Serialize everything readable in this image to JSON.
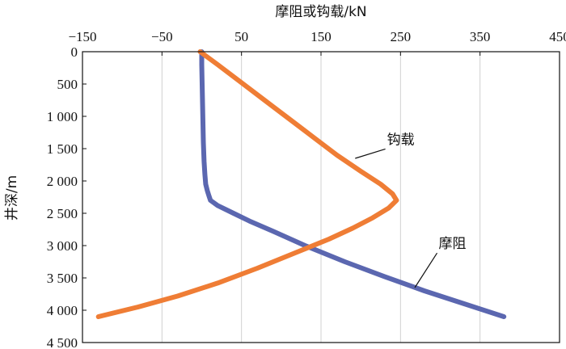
{
  "chart_data": {
    "type": "line",
    "xlabel": "摩阻或钩载/kN",
    "ylabel": "井深/m",
    "x_axis_position": "top",
    "y_inverted": true,
    "xlim": [
      -150,
      450
    ],
    "ylim": [
      0,
      4500
    ],
    "x_ticks": [
      -150,
      -50,
      50,
      150,
      250,
      350,
      450
    ],
    "x_tick_labels": [
      "−150",
      "−50",
      "50",
      "150",
      "250",
      "350",
      "450"
    ],
    "y_ticks": [
      0,
      500,
      1000,
      1500,
      2000,
      2500,
      3000,
      3500,
      4000,
      4500
    ],
    "y_tick_labels": [
      "0",
      "500",
      "1 000",
      "1 500",
      "2 000",
      "2 500",
      "3 000",
      "3 500",
      "4 000",
      "4 500"
    ],
    "grid": {
      "vertical": true,
      "horizontal": false,
      "color": "#d0d0d0"
    },
    "series": [
      {
        "name": "摩阻",
        "color": "#5b67b0",
        "points": [
          [
            0,
            0
          ],
          [
            0,
            200
          ],
          [
            0.5,
            500
          ],
          [
            1,
            800
          ],
          [
            1.5,
            1100
          ],
          [
            2,
            1400
          ],
          [
            3,
            1700
          ],
          [
            4,
            1900
          ],
          [
            5,
            2050
          ],
          [
            7,
            2150
          ],
          [
            9,
            2230
          ],
          [
            11,
            2300
          ],
          [
            20,
            2380
          ],
          [
            40,
            2500
          ],
          [
            60,
            2620
          ],
          [
            90,
            2780
          ],
          [
            130,
            3000
          ],
          [
            180,
            3250
          ],
          [
            230,
            3480
          ],
          [
            280,
            3700
          ],
          [
            330,
            3900
          ],
          [
            380,
            4100
          ]
        ]
      },
      {
        "name": "钩载",
        "color": "#ef7d35",
        "points": [
          [
            -2,
            0
          ],
          [
            20,
            200
          ],
          [
            50,
            480
          ],
          [
            80,
            760
          ],
          [
            110,
            1040
          ],
          [
            140,
            1320
          ],
          [
            170,
            1600
          ],
          [
            200,
            1850
          ],
          [
            225,
            2050
          ],
          [
            240,
            2200
          ],
          [
            245,
            2300
          ],
          [
            235,
            2420
          ],
          [
            215,
            2570
          ],
          [
            190,
            2730
          ],
          [
            160,
            2900
          ],
          [
            120,
            3100
          ],
          [
            70,
            3350
          ],
          [
            20,
            3580
          ],
          [
            -30,
            3780
          ],
          [
            -80,
            3950
          ],
          [
            -130,
            4100
          ]
        ]
      }
    ],
    "annotations": [
      {
        "text": "钩载",
        "series": "钩载",
        "at": [
          193,
          1650
        ],
        "label_at": [
          233,
          1430
        ]
      },
      {
        "text": "摩阻",
        "series": "摩阻",
        "at": [
          268,
          3650
        ],
        "label_at": [
          298,
          3040
        ]
      }
    ]
  }
}
